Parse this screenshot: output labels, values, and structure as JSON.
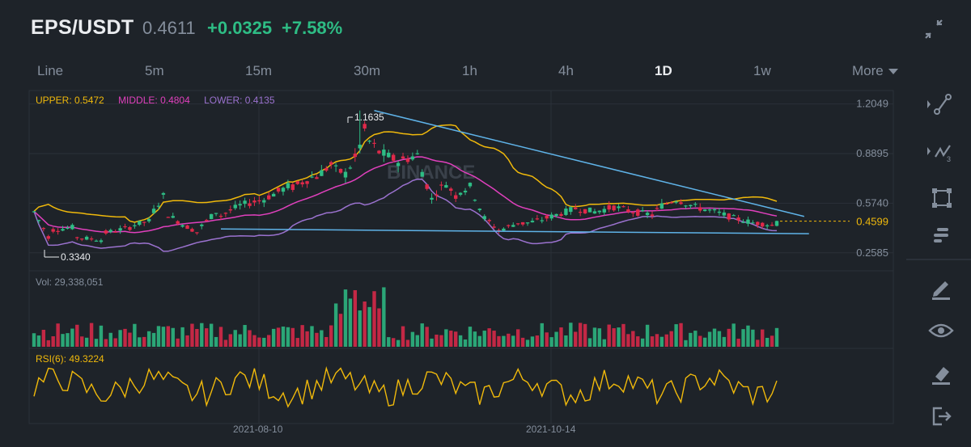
{
  "header": {
    "symbol": "EPS/USDT",
    "price": "0.4611",
    "change": "+0.0325",
    "change_pct": "+7.58%"
  },
  "tabs": [
    {
      "label": "Line",
      "active": false
    },
    {
      "label": "5m",
      "active": false
    },
    {
      "label": "15m",
      "active": false
    },
    {
      "label": "30m",
      "active": false
    },
    {
      "label": "1h",
      "active": false
    },
    {
      "label": "4h",
      "active": false
    },
    {
      "label": "1D",
      "active": true
    },
    {
      "label": "1w",
      "active": false
    },
    {
      "label": "More",
      "active": false
    }
  ],
  "toolbar": {
    "icons": [
      "trend-line-icon",
      "fib-wave-icon",
      "rectangle-select-icon",
      "indicator-list-icon",
      "draw-pencil-icon",
      "visibility-eye-icon",
      "eraser-icon",
      "exit-icon"
    ]
  },
  "colors": {
    "up": "#2ebd85",
    "down": "#e0294a",
    "upper_band": "#f0b90b",
    "middle_band": "#e040bd",
    "lower_band": "#9b72cf",
    "trendline": "#5fb3e8",
    "rsi": "#f0b90b",
    "background": "#1e2329"
  },
  "watermark": "BINANCE",
  "chart_data": {
    "type": "candlestick",
    "interval": "1D",
    "x_ticks": [
      "2021-08-10",
      "2021-10-14"
    ],
    "price_axis": {
      "ticks": [
        "1.2049",
        "0.8895",
        "0.5740",
        "0.2585"
      ],
      "range": [
        0.17,
        1.27
      ],
      "current_price_label": "0.4599"
    },
    "bollinger": {
      "upper_label": "UPPER: 0.5472",
      "middle_label": "MIDDLE: 0.4804",
      "lower_label": "LOWER: 0.4135"
    },
    "annotations": {
      "high_label": "1.1635",
      "high": 1.1635,
      "low_label": "0.3340",
      "low": 0.334
    },
    "volume": {
      "label": "Vol: 29,338,051",
      "value": 29338051
    },
    "rsi": {
      "label": "RSI(6): 49.3224",
      "value": 49.3224
    },
    "anchors": [
      [
        0,
        0.52,
        0.36
      ],
      [
        3,
        0.4,
        0.42
      ],
      [
        8,
        0.36,
        0.34
      ],
      [
        14,
        0.38,
        0.42
      ],
      [
        20,
        0.43,
        0.46
      ],
      [
        24,
        0.48,
        0.62
      ],
      [
        27,
        0.52,
        0.44
      ],
      [
        31,
        0.44,
        0.39
      ],
      [
        34,
        0.4,
        0.52
      ],
      [
        38,
        0.48,
        0.56
      ],
      [
        43,
        0.56,
        0.6
      ],
      [
        48,
        0.6,
        0.68
      ],
      [
        53,
        0.66,
        0.74
      ],
      [
        58,
        0.72,
        0.82
      ],
      [
        62,
        0.8,
        0.76
      ],
      [
        65,
        0.76,
        0.86
      ],
      [
        67,
        0.84,
        1.04
      ],
      [
        69,
        1.0,
        0.9
      ],
      [
        72,
        0.9,
        0.84
      ],
      [
        76,
        0.84,
        0.88
      ],
      [
        80,
        0.86,
        0.6
      ],
      [
        83,
        0.62,
        0.7
      ],
      [
        86,
        0.7,
        0.62
      ],
      [
        88,
        0.64,
        0.68
      ],
      [
        91,
        0.68,
        0.48
      ],
      [
        94,
        0.48,
        0.4
      ],
      [
        97,
        0.4,
        0.45
      ],
      [
        101,
        0.44,
        0.46
      ],
      [
        105,
        0.46,
        0.5
      ],
      [
        109,
        0.5,
        0.54
      ],
      [
        113,
        0.54,
        0.52
      ],
      [
        117,
        0.52,
        0.55
      ],
      [
        121,
        0.55,
        0.52
      ],
      [
        125,
        0.52,
        0.5
      ],
      [
        129,
        0.5,
        0.56
      ],
      [
        131,
        0.56,
        0.6
      ],
      [
        134,
        0.6,
        0.55
      ],
      [
        138,
        0.55,
        0.52
      ],
      [
        142,
        0.52,
        0.48
      ],
      [
        146,
        0.48,
        0.45
      ],
      [
        150,
        0.45,
        0.44
      ],
      [
        153,
        0.44,
        0.43
      ],
      [
        155,
        0.43,
        0.4611
      ]
    ],
    "trendlines": [
      {
        "name": "resistance",
        "from": [
          71,
          1.1635
        ],
        "to": [
          157,
          0.49
        ]
      },
      {
        "name": "support",
        "from": [
          39,
          0.41
        ],
        "to": [
          158,
          0.38
        ]
      }
    ]
  }
}
